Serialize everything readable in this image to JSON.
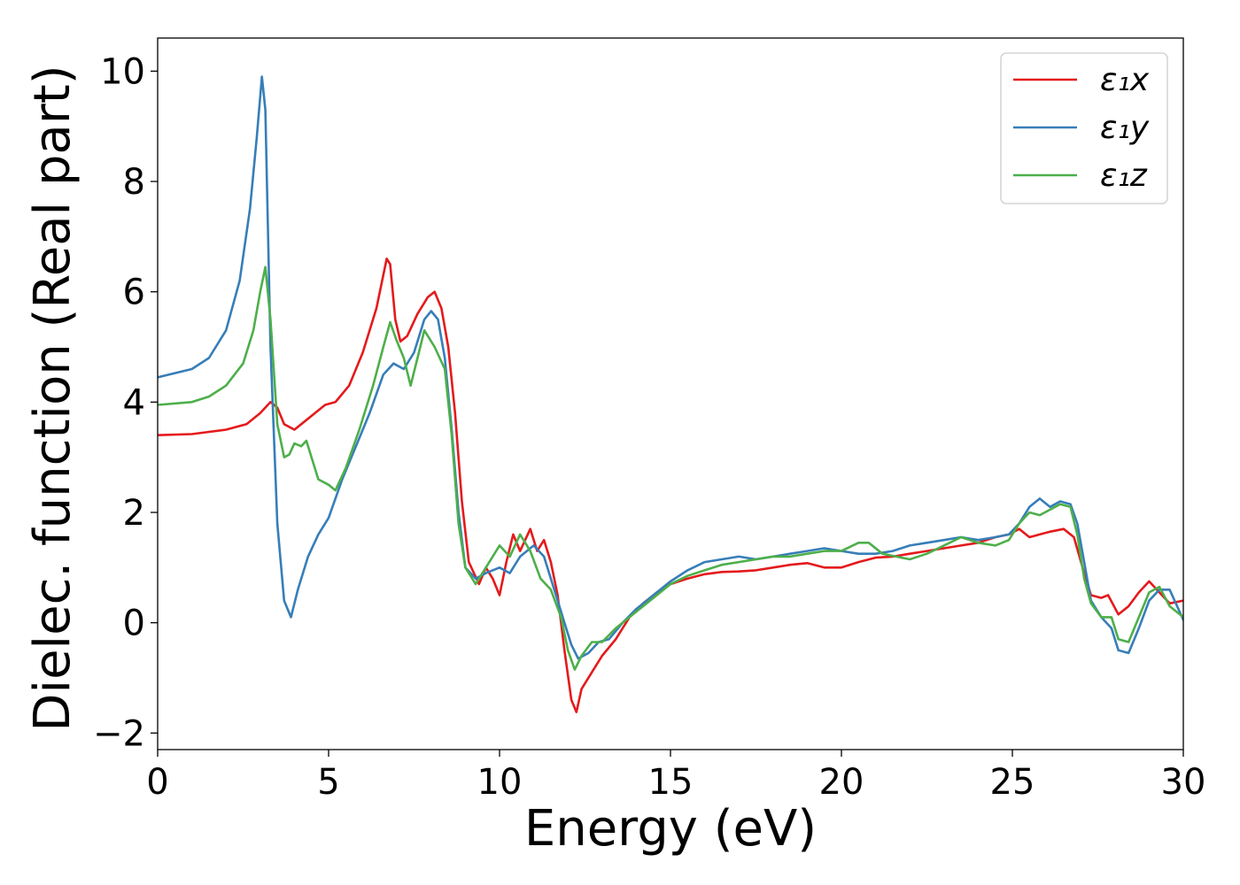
{
  "chart_data": {
    "type": "line",
    "title": "",
    "xlabel": "Energy (eV)",
    "ylabel": "Dielec. function (Real part)",
    "xlim": [
      0,
      30
    ],
    "ylim": [
      -2.3,
      10.6
    ],
    "xticks": [
      0,
      5,
      10,
      15,
      20,
      25,
      30
    ],
    "xtick_labels": [
      "0",
      "5",
      "10",
      "15",
      "20",
      "25",
      "30"
    ],
    "yticks": [
      -2,
      0,
      2,
      4,
      6,
      8,
      10
    ],
    "ytick_labels": [
      "−2",
      "0",
      "2",
      "4",
      "6",
      "8",
      "10"
    ],
    "grid": false,
    "legend_position": "top-right",
    "series": [
      {
        "name": "ε₁x",
        "color": "#e41a1c",
        "x": [
          0,
          1,
          2,
          2.6,
          3.0,
          3.3,
          3.5,
          3.7,
          4.0,
          4.3,
          4.6,
          4.9,
          5.2,
          5.6,
          6.0,
          6.4,
          6.7,
          6.8,
          6.95,
          7.1,
          7.3,
          7.6,
          7.9,
          8.1,
          8.3,
          8.5,
          8.7,
          8.9,
          9.1,
          9.4,
          9.6,
          9.8,
          10.0,
          10.2,
          10.4,
          10.6,
          10.9,
          11.1,
          11.3,
          11.5,
          11.7,
          11.9,
          12.1,
          12.25,
          12.4,
          12.7,
          13.0,
          13.4,
          13.8,
          14.2,
          14.6,
          15.0,
          15.5,
          16.0,
          16.5,
          17.0,
          17.5,
          18.0,
          18.5,
          19.0,
          19.5,
          20.0,
          20.5,
          21.0,
          21.5,
          22.0,
          22.5,
          23.0,
          23.5,
          24.0,
          24.5,
          24.9,
          25.2,
          25.5,
          25.8,
          26.1,
          26.5,
          26.8,
          27.1,
          27.3,
          27.6,
          27.8,
          28.1,
          28.4,
          28.7,
          29.0,
          29.3,
          29.6,
          30.0
        ],
        "y": [
          3.4,
          3.42,
          3.5,
          3.6,
          3.8,
          4.0,
          3.9,
          3.6,
          3.5,
          3.65,
          3.8,
          3.95,
          4.0,
          4.3,
          4.9,
          5.7,
          6.6,
          6.5,
          5.5,
          5.1,
          5.2,
          5.6,
          5.9,
          6.0,
          5.7,
          5.0,
          3.8,
          2.2,
          1.1,
          0.7,
          1.0,
          0.8,
          0.5,
          1.1,
          1.6,
          1.3,
          1.7,
          1.3,
          1.5,
          1.1,
          0.5,
          -0.5,
          -1.4,
          -1.62,
          -1.2,
          -0.9,
          -0.6,
          -0.3,
          0.1,
          0.35,
          0.55,
          0.7,
          0.8,
          0.88,
          0.92,
          0.93,
          0.95,
          1.0,
          1.05,
          1.08,
          1.0,
          1.0,
          1.1,
          1.18,
          1.2,
          1.25,
          1.3,
          1.35,
          1.4,
          1.45,
          1.55,
          1.6,
          1.7,
          1.55,
          1.6,
          1.65,
          1.7,
          1.55,
          0.9,
          0.5,
          0.45,
          0.5,
          0.15,
          0.3,
          0.55,
          0.75,
          0.55,
          0.35,
          0.4
        ]
      },
      {
        "name": "ε₁y",
        "color": "#377eb8",
        "x": [
          0,
          1,
          1.5,
          2.0,
          2.4,
          2.7,
          2.9,
          3.05,
          3.15,
          3.3,
          3.5,
          3.7,
          3.9,
          4.1,
          4.4,
          4.7,
          5.0,
          5.4,
          5.8,
          6.2,
          6.6,
          6.9,
          7.2,
          7.5,
          7.8,
          8.0,
          8.2,
          8.4,
          8.6,
          8.8,
          9.0,
          9.3,
          9.6,
          10.0,
          10.3,
          10.6,
          11.0,
          11.3,
          11.6,
          11.9,
          12.1,
          12.3,
          12.6,
          12.9,
          13.2,
          13.6,
          14.0,
          14.5,
          15.0,
          15.5,
          16.0,
          16.5,
          17.0,
          17.5,
          18.0,
          18.5,
          19.0,
          19.5,
          20.0,
          20.5,
          21.0,
          21.5,
          22.0,
          22.5,
          23.0,
          23.5,
          24.0,
          24.5,
          24.9,
          25.2,
          25.5,
          25.8,
          26.1,
          26.4,
          26.7,
          26.9,
          27.1,
          27.3,
          27.6,
          27.9,
          28.1,
          28.4,
          28.7,
          29.0,
          29.3,
          29.6,
          30.0
        ],
        "y": [
          4.45,
          4.6,
          4.8,
          5.3,
          6.2,
          7.5,
          8.8,
          9.9,
          9.3,
          5.0,
          1.8,
          0.4,
          0.1,
          0.6,
          1.2,
          1.6,
          1.9,
          2.6,
          3.2,
          3.8,
          4.5,
          4.7,
          4.6,
          4.9,
          5.5,
          5.65,
          5.5,
          4.8,
          3.5,
          2.0,
          1.0,
          0.8,
          0.9,
          1.0,
          0.9,
          1.2,
          1.4,
          1.2,
          0.6,
          0.0,
          -0.4,
          -0.65,
          -0.55,
          -0.35,
          -0.3,
          0.0,
          0.25,
          0.5,
          0.75,
          0.95,
          1.1,
          1.15,
          1.2,
          1.15,
          1.2,
          1.25,
          1.3,
          1.35,
          1.3,
          1.25,
          1.25,
          1.3,
          1.4,
          1.45,
          1.5,
          1.55,
          1.5,
          1.55,
          1.6,
          1.8,
          2.1,
          2.25,
          2.1,
          2.2,
          2.15,
          1.8,
          1.1,
          0.4,
          0.1,
          -0.1,
          -0.5,
          -0.55,
          -0.1,
          0.4,
          0.6,
          0.6,
          0.05
        ]
      },
      {
        "name": "ε₁z",
        "color": "#4daf4a",
        "x": [
          0,
          1,
          1.5,
          2.0,
          2.5,
          2.8,
          3.0,
          3.15,
          3.3,
          3.5,
          3.7,
          3.85,
          4.0,
          4.2,
          4.35,
          4.5,
          4.7,
          5.0,
          5.2,
          5.5,
          5.9,
          6.3,
          6.6,
          6.8,
          7.0,
          7.2,
          7.4,
          7.6,
          7.8,
          8.1,
          8.4,
          8.6,
          8.8,
          9.0,
          9.3,
          9.6,
          10.0,
          10.3,
          10.6,
          10.9,
          11.2,
          11.5,
          11.8,
          12.0,
          12.2,
          12.4,
          12.7,
          13.0,
          13.4,
          13.8,
          14.2,
          14.6,
          15.0,
          15.5,
          16.0,
          16.5,
          17.0,
          17.5,
          18.0,
          18.5,
          19.0,
          19.5,
          20.0,
          20.5,
          20.8,
          21.2,
          21.6,
          22.0,
          22.5,
          23.0,
          23.5,
          24.0,
          24.5,
          24.9,
          25.2,
          25.5,
          25.8,
          26.1,
          26.4,
          26.7,
          26.9,
          27.1,
          27.3,
          27.6,
          27.9,
          28.1,
          28.4,
          28.7,
          29.0,
          29.3,
          29.6,
          30.0
        ],
        "y": [
          3.95,
          4.0,
          4.1,
          4.3,
          4.7,
          5.3,
          6.0,
          6.45,
          5.5,
          3.6,
          3.0,
          3.05,
          3.25,
          3.2,
          3.3,
          3.0,
          2.6,
          2.5,
          2.4,
          2.8,
          3.5,
          4.3,
          5.0,
          5.45,
          5.1,
          4.8,
          4.3,
          4.8,
          5.3,
          5.0,
          4.6,
          3.4,
          1.8,
          1.0,
          0.7,
          1.0,
          1.4,
          1.2,
          1.6,
          1.3,
          0.8,
          0.6,
          0.1,
          -0.5,
          -0.85,
          -0.6,
          -0.35,
          -0.35,
          -0.1,
          0.1,
          0.3,
          0.5,
          0.7,
          0.85,
          0.95,
          1.05,
          1.1,
          1.15,
          1.2,
          1.2,
          1.25,
          1.3,
          1.3,
          1.45,
          1.45,
          1.25,
          1.2,
          1.15,
          1.25,
          1.4,
          1.55,
          1.45,
          1.4,
          1.5,
          1.8,
          2.0,
          1.95,
          2.05,
          2.15,
          2.1,
          1.6,
          0.8,
          0.35,
          0.1,
          0.1,
          -0.3,
          -0.35,
          0.1,
          0.55,
          0.65,
          0.3,
          0.1
        ]
      }
    ]
  }
}
